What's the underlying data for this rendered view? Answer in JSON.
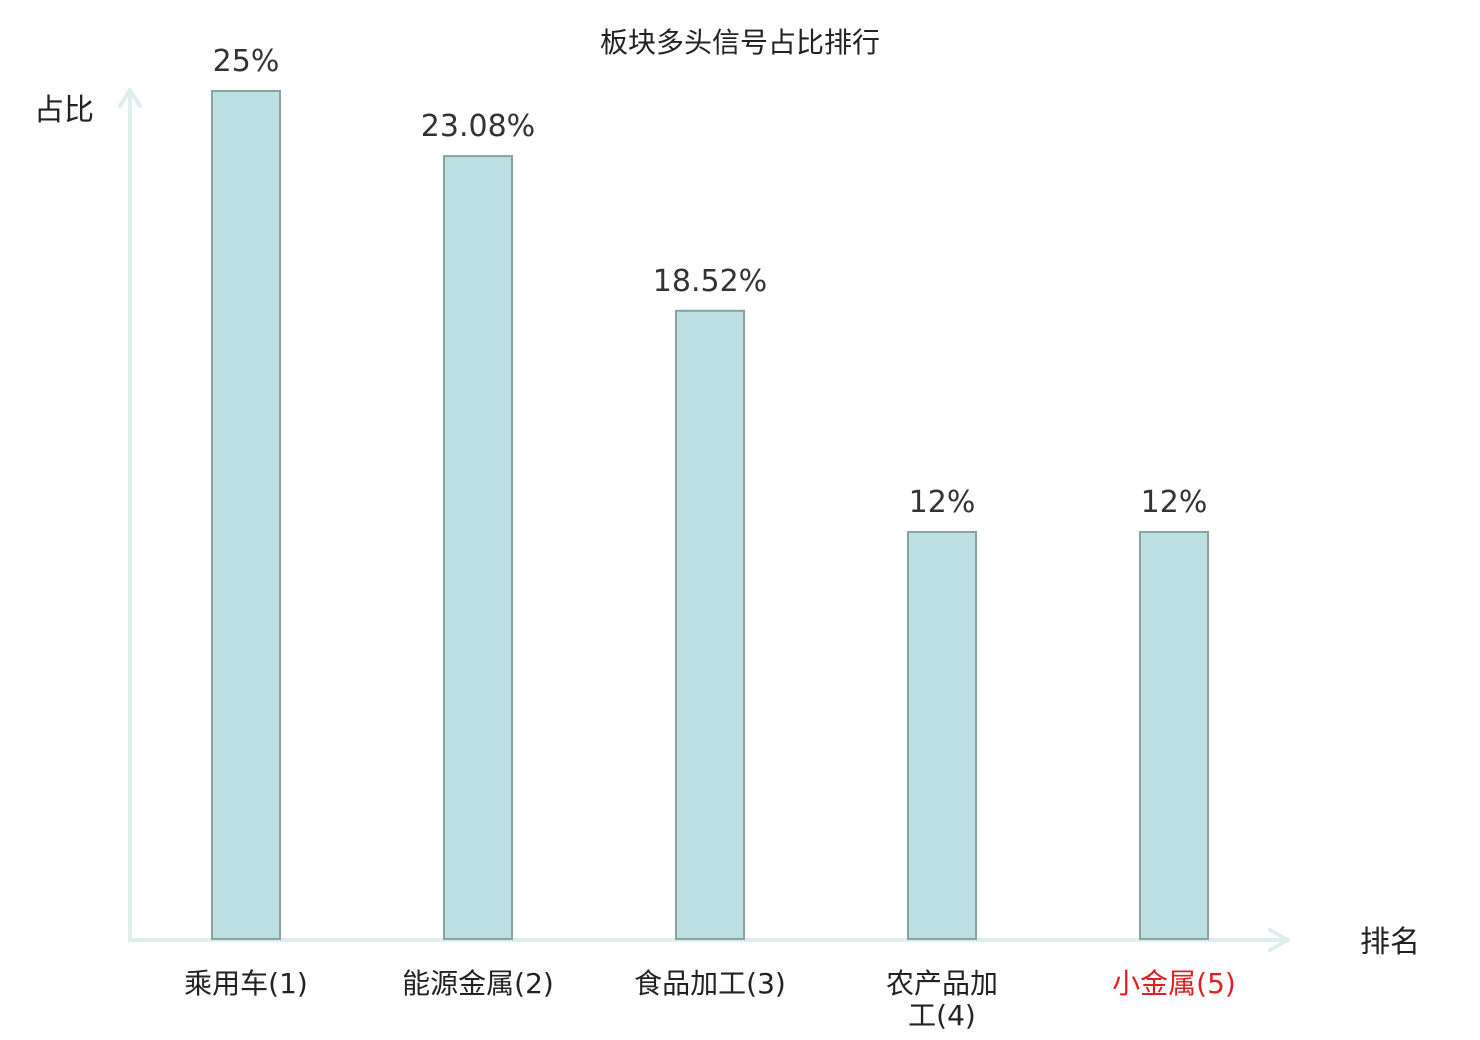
{
  "chart_data": {
    "type": "bar",
    "title": "板块多头信号占比排行",
    "ylabel": "占比",
    "xlabel": "排名",
    "ylim": [
      0,
      25
    ],
    "grid": false,
    "categories": [
      [
        "乘用车",
        "(1)"
      ],
      [
        "能源金属",
        "(2)"
      ],
      [
        "食品加工",
        "(3)"
      ],
      [
        "农产品加",
        "工(4)"
      ],
      [
        "小金属",
        "(5)"
      ]
    ],
    "values": [
      25,
      23.08,
      18.52,
      12,
      12
    ],
    "value_labels": [
      "25%",
      "23.08%",
      "18.52%",
      "12%",
      "12%"
    ],
    "category_colors": [
      "#222222",
      "#222222",
      "#222222",
      "#222222",
      "#e02020"
    ],
    "bar_color": "#bce0e1",
    "bar_edge_color": "#86a3a3",
    "axis_color": "#dcefed"
  }
}
